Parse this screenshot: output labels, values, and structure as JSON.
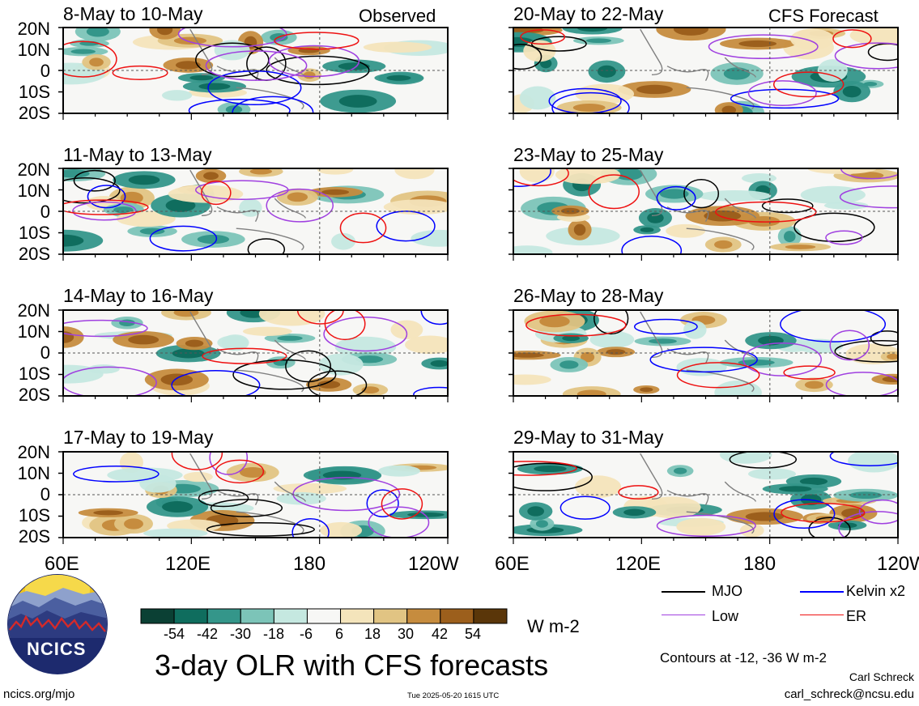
{
  "observed_tag": "Observed",
  "forecast_tag": "CFS Forecast",
  "panels_left": [
    {
      "title": "8-May to 10-May"
    },
    {
      "title": "11-May to 13-May"
    },
    {
      "title": "14-May to 16-May"
    },
    {
      "title": "17-May to 19-May"
    }
  ],
  "panels_right": [
    {
      "title": "20-May to 22-May"
    },
    {
      "title": "23-May to 25-May"
    },
    {
      "title": "26-May to 28-May"
    },
    {
      "title": "29-May to 31-May"
    }
  ],
  "lat_ticks": [
    "20N",
    "10N",
    "0",
    "10S",
    "20S"
  ],
  "lon_ticks": [
    "60E",
    "120E",
    "180",
    "120W"
  ],
  "colorbar": {
    "labels": [
      "-54",
      "-42",
      "-30",
      "-18",
      "-6",
      "6",
      "18",
      "30",
      "42",
      "54"
    ],
    "colors": [
      "#0b4034",
      "#0f6d5e",
      "#34968a",
      "#7cc4b8",
      "#c5e8e0",
      "#f7f7f5",
      "#f4e4bb",
      "#e1c483",
      "#c68c3e",
      "#9c5f1c",
      "#5a3609"
    ],
    "units": "W m-2"
  },
  "legend": {
    "items": [
      {
        "label": "MJO",
        "color": "#000000"
      },
      {
        "label": "Kelvin x2",
        "color": "#0000ff"
      },
      {
        "label": "Low",
        "color": "#a040e0"
      },
      {
        "label": "ER",
        "color": "#ee1111"
      }
    ],
    "note": "Contours at -12, -36 W m-2"
  },
  "title": "3-day OLR with CFS forecasts",
  "logo_text": "NCICS",
  "url": "ncics.org/mjo",
  "timestamp": "Tue 2025-05-20 1615 UTC",
  "author": "Carl Schreck",
  "email": "carl_schreck@ncsu.edu"
}
